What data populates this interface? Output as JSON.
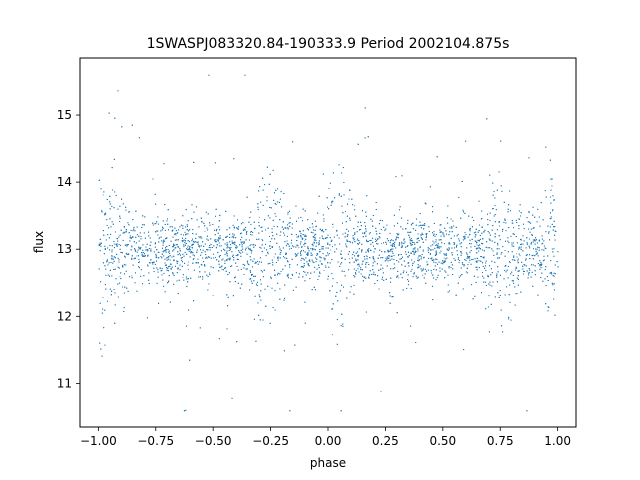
{
  "chart_data": {
    "type": "scatter",
    "title": "1SWASPJ083320.84-190333.9 Period 2002104.875s",
    "xlabel": "phase",
    "ylabel": "flux",
    "xlim": [
      -1.08,
      1.08
    ],
    "ylim": [
      10.35,
      15.85
    ],
    "x_ticks": [
      -1.0,
      -0.75,
      -0.5,
      -0.25,
      0.0,
      0.25,
      0.5,
      0.75,
      1.0
    ],
    "x_tick_labels": [
      "−1.00",
      "−0.75",
      "−0.50",
      "−0.25",
      "0.00",
      "0.25",
      "0.50",
      "0.75",
      "1.00"
    ],
    "y_ticks": [
      11,
      12,
      13,
      14,
      15
    ],
    "y_tick_labels": [
      "11",
      "12",
      "13",
      "14",
      "15"
    ],
    "grid": false,
    "point_color": "#1f77b4",
    "series": [
      {
        "x_range": [
          -1.0,
          1.0
        ],
        "baseline_flux": 13.0,
        "typical_spread": [
          12.0,
          14.0
        ],
        "max_flux": 15.6,
        "min_flux": 10.6,
        "x": [
          -0.97,
          -0.93,
          -0.85,
          -0.78,
          -0.72,
          -0.63,
          -0.58,
          -0.53,
          -0.47,
          -0.4,
          -0.35,
          -0.28,
          -0.22,
          -0.15,
          -0.08,
          -0.03,
          0.03,
          0.08,
          0.15,
          0.22,
          0.27,
          0.33,
          0.42,
          0.47,
          0.53,
          0.6,
          0.65,
          0.72,
          0.78,
          0.85,
          0.92,
          0.97
        ],
        "y": [
          14.35,
          14.05,
          13.6,
          13.4,
          13.25,
          13.5,
          13.6,
          13.4,
          13.3,
          13.6,
          13.6,
          14.35,
          14.05,
          13.6,
          13.4,
          13.25,
          14.35,
          14.05,
          13.6,
          13.4,
          13.25,
          13.5,
          13.6,
          13.4,
          13.3,
          13.6,
          13.6,
          14.35,
          14.05,
          13.6,
          13.6,
          14.35
        ]
      }
    ]
  }
}
